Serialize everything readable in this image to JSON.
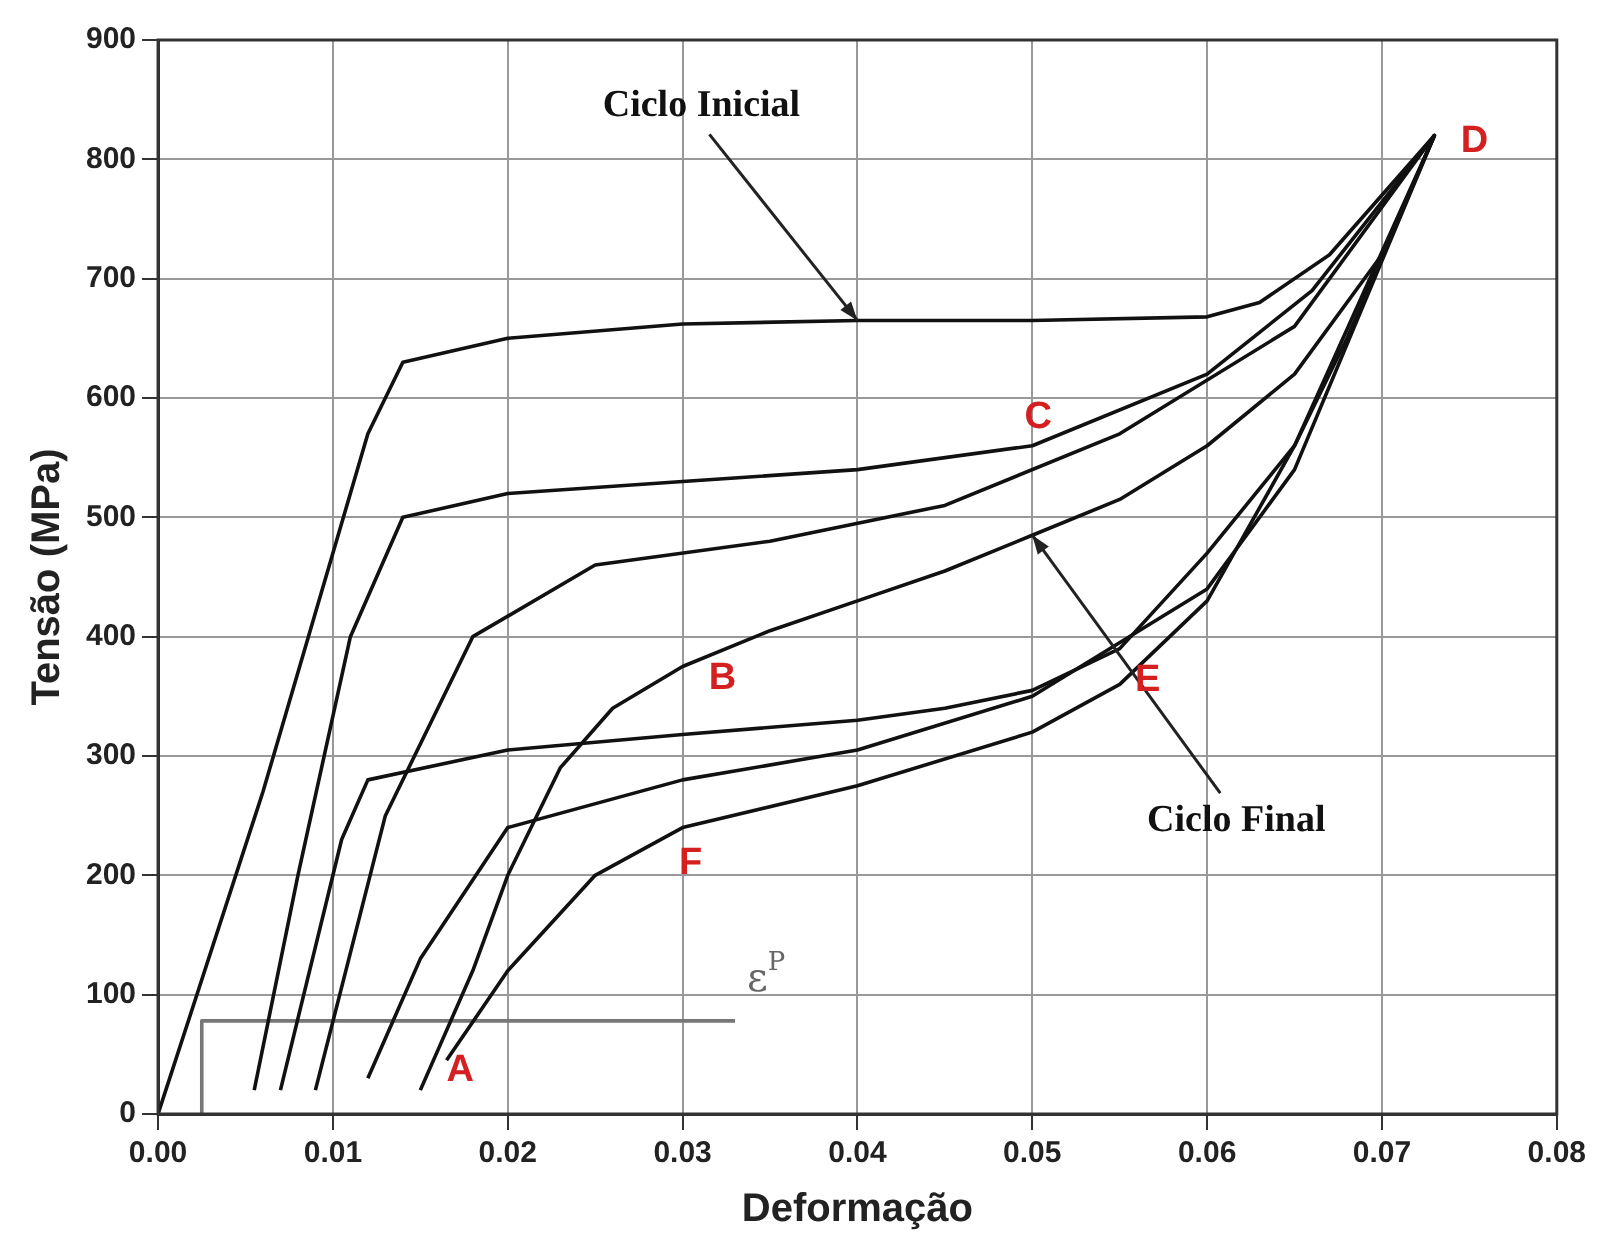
{
  "chart_data": {
    "type": "line",
    "xlabel": "Deformação",
    "ylabel": "Tensão (MPa)",
    "xlim": [
      0,
      0.08
    ],
    "xticks": [
      {
        "value": 0,
        "label": "0.00"
      },
      {
        "value": 0.01,
        "label": "0.01"
      },
      {
        "value": 0.02,
        "label": "0.02"
      },
      {
        "value": 0.03,
        "label": "0.03"
      },
      {
        "value": 0.04,
        "label": "0.04"
      },
      {
        "value": 0.05,
        "label": "0.05"
      },
      {
        "value": 0.06,
        "label": "0.06"
      },
      {
        "value": 0.07,
        "label": "0.07"
      },
      {
        "value": 0.08,
        "label": "0.08"
      }
    ],
    "ylim": [
      0,
      900
    ],
    "yticks": [
      0,
      100,
      200,
      300,
      400,
      500,
      600,
      700,
      800,
      900
    ],
    "grid": true,
    "legend": false,
    "marker": "none",
    "line_style": "solid",
    "series": [
      {
        "color": "#111111",
        "x": [
          0,
          0.006,
          0.012,
          0.014,
          0.02,
          0.03,
          0.04,
          0.05,
          0.06,
          0.063,
          0.067,
          0.073,
          0.068,
          0.065,
          0.06,
          0.055,
          0.05,
          0.045,
          0.04,
          0.03,
          0.02,
          0.012,
          0.0105,
          0.007
        ],
        "values": [
          0,
          270,
          570,
          630,
          650,
          662,
          665,
          665,
          668,
          680,
          720,
          820,
          650,
          560,
          470,
          390,
          355,
          340,
          330,
          318,
          305,
          280,
          230,
          20
        ]
      },
      {
        "color": "#111111",
        "x": [
          0.0055,
          0.008,
          0.011,
          0.014,
          0.02,
          0.03,
          0.04,
          0.05,
          0.06,
          0.066,
          0.073
        ],
        "values": [
          20,
          200,
          400,
          500,
          520,
          530,
          540,
          560,
          620,
          690,
          820
        ]
      },
      {
        "color": "#111111",
        "x": [
          0.009,
          0.013,
          0.018,
          0.025,
          0.035,
          0.045,
          0.055,
          0.065,
          0.073,
          0.065,
          0.06,
          0.05,
          0.04,
          0.03,
          0.02,
          0.015,
          0.012
        ],
        "values": [
          20,
          250,
          400,
          460,
          480,
          510,
          570,
          660,
          820,
          540,
          440,
          350,
          305,
          280,
          240,
          130,
          30
        ]
      },
      {
        "color": "#111111",
        "x": [
          0.015,
          0.018,
          0.02,
          0.023,
          0.026,
          0.03,
          0.035,
          0.04,
          0.045,
          0.05,
          0.055,
          0.06,
          0.065,
          0.07,
          0.073
        ],
        "values": [
          20,
          120,
          200,
          290,
          340,
          375,
          405,
          430,
          455,
          485,
          515,
          560,
          620,
          720,
          820
        ]
      },
      {
        "color": "#111111",
        "x": [
          0.073,
          0.065,
          0.06,
          0.055,
          0.05,
          0.04,
          0.03,
          0.025,
          0.02,
          0.0165
        ],
        "values": [
          820,
          560,
          430,
          360,
          320,
          275,
          240,
          200,
          120,
          45
        ]
      },
      {
        "color": "#777777",
        "x": [
          0.0025,
          0.0025,
          0.033
        ],
        "values": [
          0,
          78,
          78
        ]
      }
    ],
    "annotations": [
      {
        "text": "Ciclo Inicial",
        "x": 0.04,
        "y": 665
      },
      {
        "text": "Ciclo Final",
        "x": 0.05,
        "y": 485
      },
      {
        "text": "A",
        "x": 0.015,
        "y": 20
      },
      {
        "text": "B",
        "x": 0.03,
        "y": 375
      },
      {
        "text": "C",
        "x": 0.05,
        "y": 560
      },
      {
        "text": "D",
        "x": 0.073,
        "y": 820
      },
      {
        "text": "E",
        "x": 0.055,
        "y": 390
      },
      {
        "text": "F",
        "x": 0.03,
        "y": 240
      },
      {
        "text": "ε$^{P}$",
        "x": 0.033,
        "y": 78
      }
    ]
  }
}
